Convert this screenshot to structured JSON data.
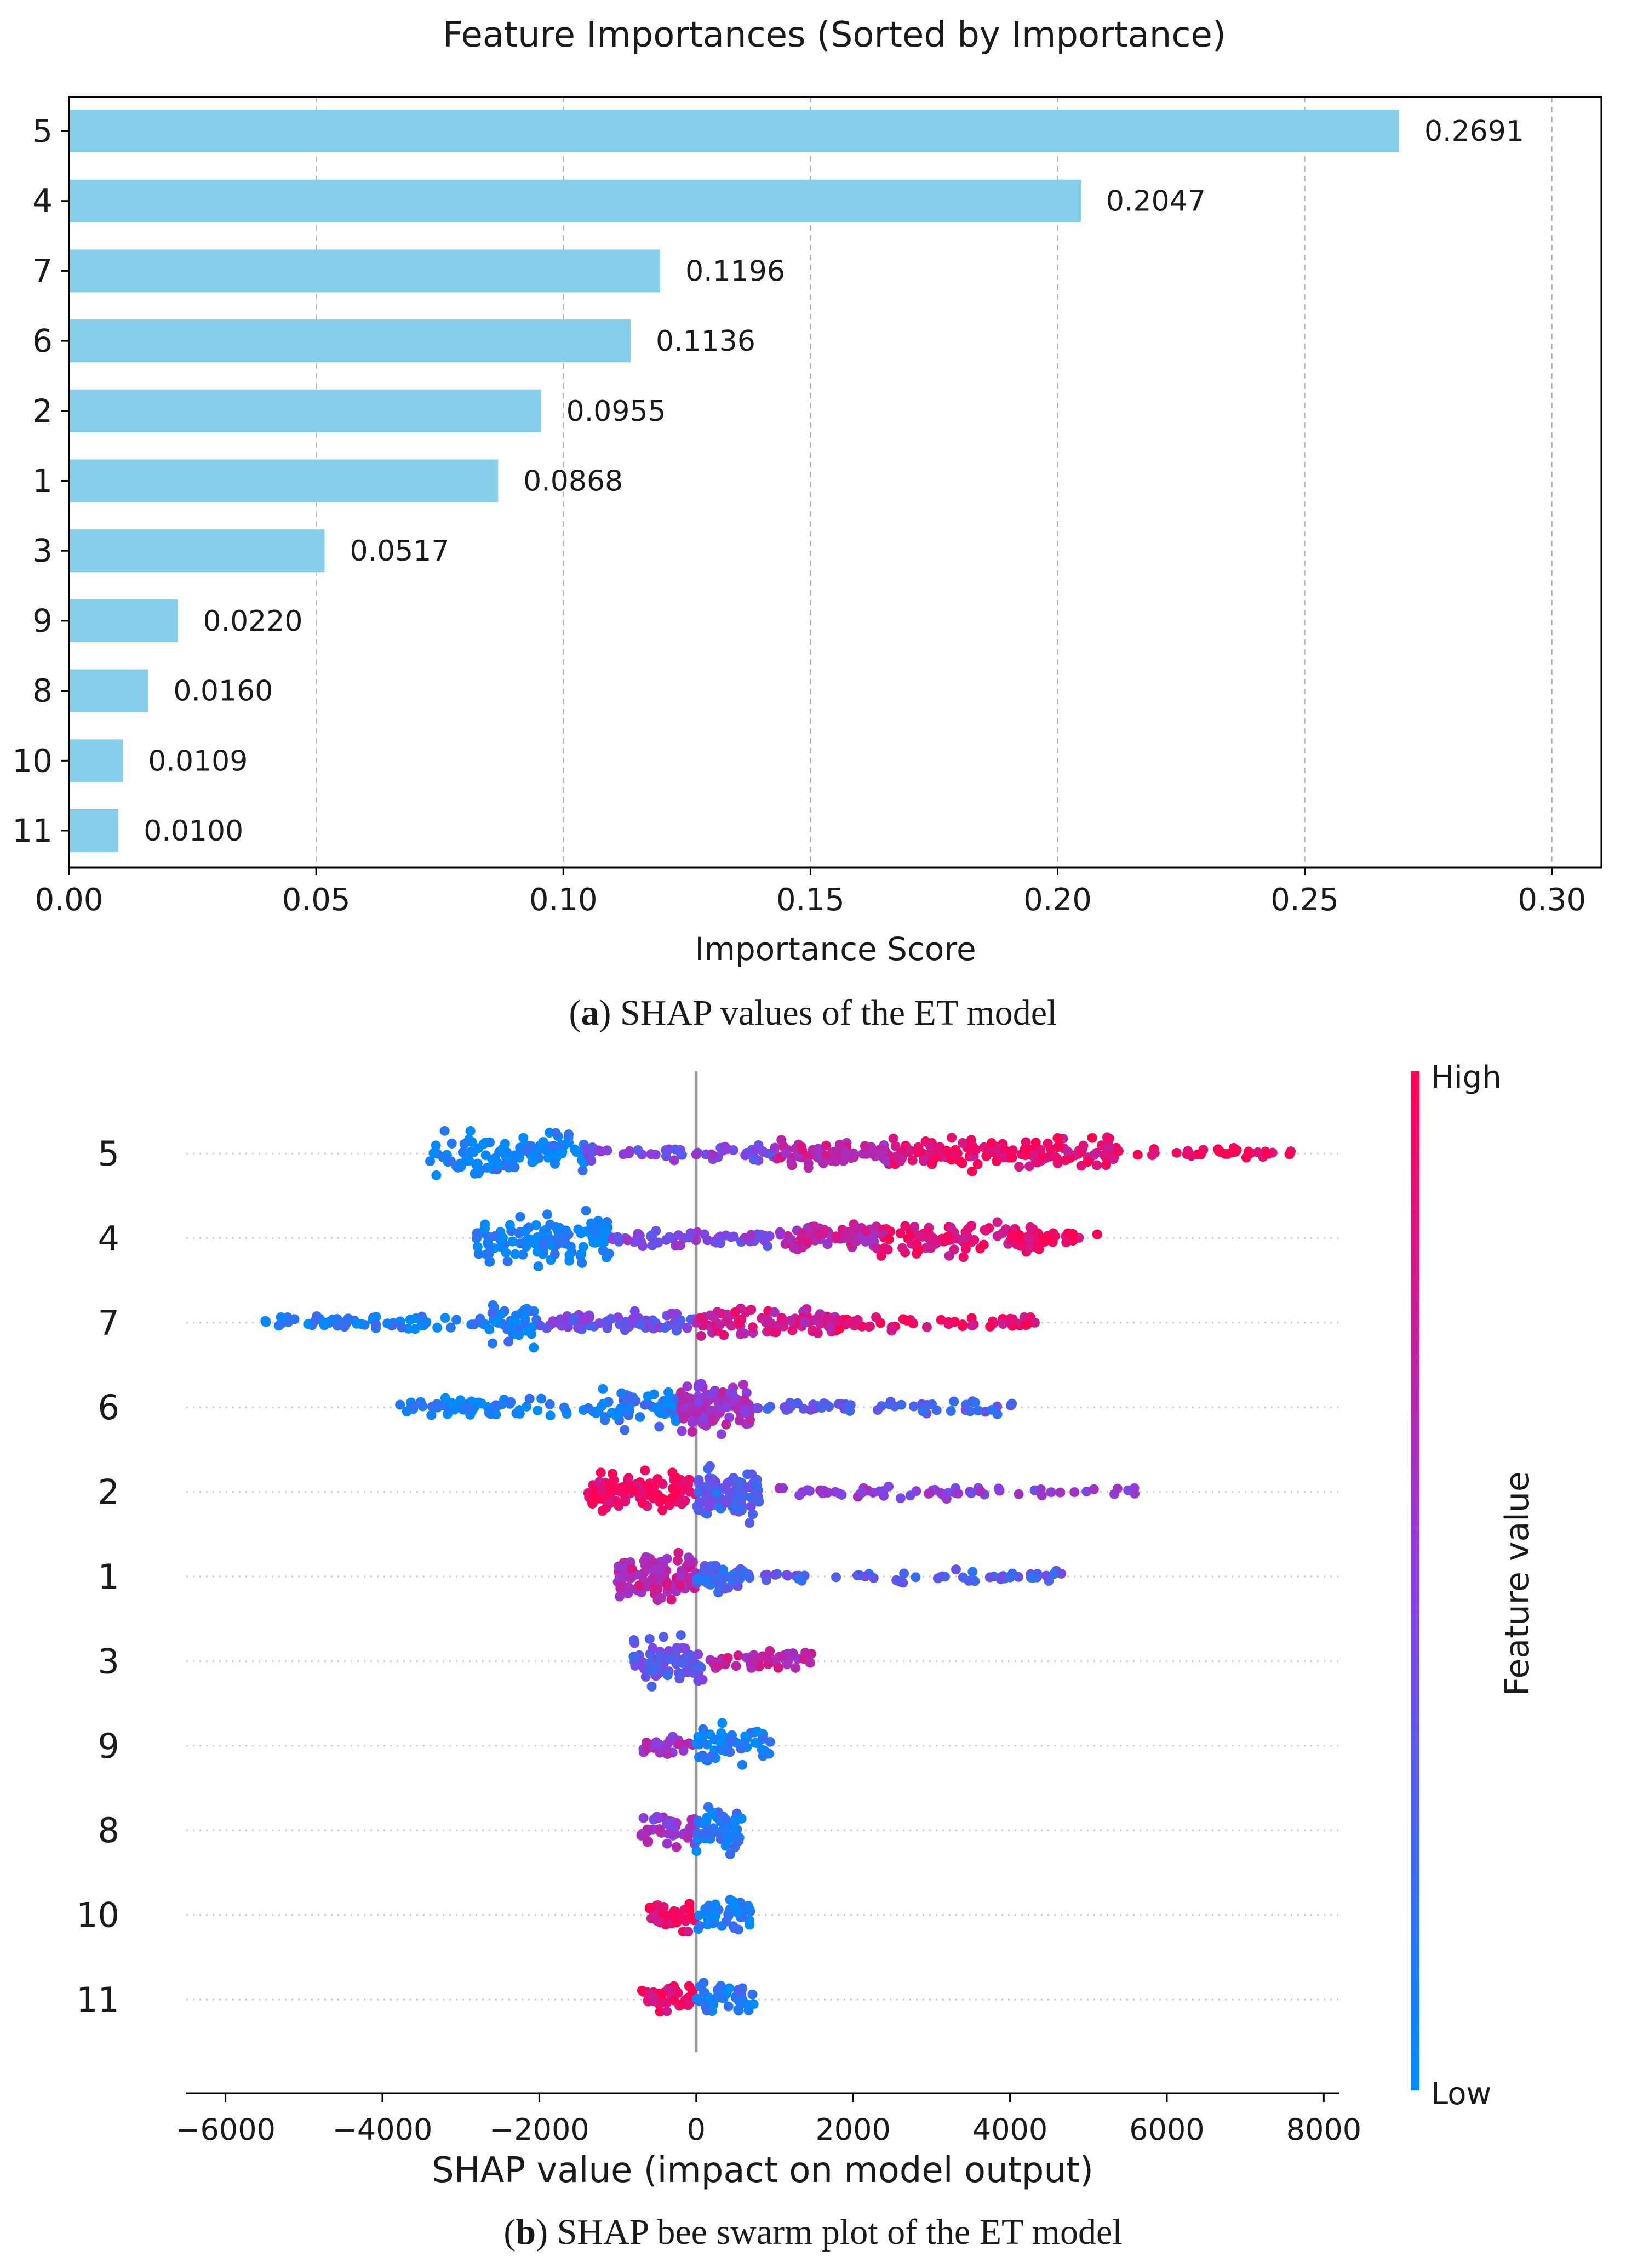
{
  "colors": {
    "bar": "#87ceeb",
    "low": "#008bfb",
    "high": "#ff0052",
    "axis": "#000000",
    "grid": "#b0b0b0",
    "zero_line": "#999999"
  },
  "captions": {
    "a_letter": "a",
    "a_text": ") SHAP values of the ET model",
    "b_letter": "b",
    "b_text": ") SHAP bee swarm plot of the ET model"
  },
  "chart_data": [
    {
      "type": "bar",
      "orientation": "horizontal",
      "title": "Feature Importances (Sorted by Importance)",
      "xlabel": "Importance Score",
      "ylabel": "",
      "categories": [
        "5",
        "4",
        "7",
        "6",
        "2",
        "1",
        "3",
        "9",
        "8",
        "10",
        "11"
      ],
      "values": [
        0.2691,
        0.2047,
        0.1196,
        0.1136,
        0.0955,
        0.0868,
        0.0517,
        0.022,
        0.016,
        0.0109,
        0.01
      ],
      "value_labels": [
        "0.2691",
        "0.2047",
        "0.1196",
        "0.1136",
        "0.0955",
        "0.0868",
        "0.0517",
        "0.0220",
        "0.0160",
        "0.0109",
        "0.0100"
      ],
      "xlim": [
        0,
        0.31
      ],
      "xticks": [
        0.0,
        0.05,
        0.1,
        0.15,
        0.2,
        0.25,
        0.3
      ],
      "xtick_labels": [
        "0.00",
        "0.05",
        "0.10",
        "0.15",
        "0.20",
        "0.25",
        "0.30"
      ],
      "grid": "vertical dashed"
    },
    {
      "type": "scatter",
      "subtype": "beeswarm",
      "title": "",
      "xlabel": "SHAP value (impact on model output)",
      "colorbar_label": "Feature value",
      "colorbar_high": "High",
      "colorbar_low": "Low",
      "xlim": [
        -6500,
        8200
      ],
      "xticks": [
        -6000,
        -4000,
        -2000,
        0,
        2000,
        4000,
        6000,
        8000
      ],
      "xtick_labels": [
        "−6000",
        "−4000",
        "−2000",
        "0",
        "2000",
        "4000",
        "6000",
        "8000"
      ],
      "features": [
        {
          "name": "5",
          "min": -3400,
          "max": 7600,
          "segments": [
            {
              "from": -3400,
              "to": -1400,
              "n": 110,
              "fv": 0.05,
              "dense": 0.9
            },
            {
              "from": -1400,
              "to": 1000,
              "n": 55,
              "fv": 0.45,
              "dense": 0.2
            },
            {
              "from": 1000,
              "to": 2500,
              "n": 70,
              "fv": 0.72,
              "dense": 0.4
            },
            {
              "from": 2500,
              "to": 5400,
              "n": 140,
              "fv": 0.9,
              "dense": 0.6
            },
            {
              "from": 5600,
              "to": 7600,
              "n": 32,
              "fv": 0.97,
              "dense": 0.05
            }
          ]
        },
        {
          "name": "4",
          "min": -2800,
          "max": 5200,
          "segments": [
            {
              "from": -2800,
              "to": -1100,
              "n": 120,
              "fv": 0.05,
              "dense": 1.0
            },
            {
              "from": -1100,
              "to": 1000,
              "n": 55,
              "fv": 0.45,
              "dense": 0.2
            },
            {
              "from": 1000,
              "to": 2300,
              "n": 70,
              "fv": 0.7,
              "dense": 0.5
            },
            {
              "from": 2300,
              "to": 4400,
              "n": 100,
              "fv": 0.88,
              "dense": 0.6
            },
            {
              "from": 4400,
              "to": 5200,
              "n": 18,
              "fv": 0.95,
              "dense": 0.1
            }
          ]
        },
        {
          "name": "7",
          "min": -5500,
          "max": 4400,
          "segments": [
            {
              "from": -5500,
              "to": -2600,
              "n": 60,
              "fv": 0.1,
              "dense": 0.1
            },
            {
              "from": -2600,
              "to": -2000,
              "n": 40,
              "fv": 0.12,
              "dense": 0.9
            },
            {
              "from": -2000,
              "to": 0,
              "n": 70,
              "fv": 0.4,
              "dense": 0.3
            },
            {
              "from": 0,
              "to": 1800,
              "n": 95,
              "fv": 0.78,
              "dense": 0.6
            },
            {
              "from": 1800,
              "to": 4400,
              "n": 50,
              "fv": 0.92,
              "dense": 0.2
            }
          ]
        },
        {
          "name": "6",
          "min": -3800,
          "max": 4100,
          "segments": [
            {
              "from": -3800,
              "to": -1200,
              "n": 70,
              "fv": 0.05,
              "dense": 0.25
            },
            {
              "from": -1200,
              "to": -200,
              "n": 55,
              "fv": 0.12,
              "dense": 0.7
            },
            {
              "from": -200,
              "to": 700,
              "n": 110,
              "fv": 0.6,
              "dense": 1.0
            },
            {
              "from": 700,
              "to": 4100,
              "n": 55,
              "fv": 0.3,
              "dense": 0.1
            }
          ]
        },
        {
          "name": "2",
          "min": -1400,
          "max": 5600,
          "segments": [
            {
              "from": -1400,
              "to": 0,
              "n": 100,
              "fv": 0.92,
              "dense": 0.8
            },
            {
              "from": 0,
              "to": 800,
              "n": 95,
              "fv": 0.3,
              "dense": 1.0
            },
            {
              "from": 800,
              "to": 5600,
              "n": 60,
              "fv": 0.5,
              "dense": 0.1
            }
          ]
        },
        {
          "name": "1",
          "min": -1000,
          "max": 4700,
          "segments": [
            {
              "from": -1000,
              "to": 0,
              "n": 95,
              "fv": 0.7,
              "dense": 0.9
            },
            {
              "from": 0,
              "to": 600,
              "n": 55,
              "fv": 0.25,
              "dense": 0.7
            },
            {
              "from": 600,
              "to": 4700,
              "n": 55,
              "fv": 0.3,
              "dense": 0.1
            }
          ]
        },
        {
          "name": "3",
          "min": -800,
          "max": 1500,
          "segments": [
            {
              "from": -800,
              "to": 100,
              "n": 75,
              "fv": 0.35,
              "dense": 1.0
            },
            {
              "from": 100,
              "to": 1500,
              "n": 50,
              "fv": 0.7,
              "dense": 0.3
            }
          ]
        },
        {
          "name": "9",
          "min": -700,
          "max": 950,
          "segments": [
            {
              "from": -700,
              "to": 0,
              "n": 30,
              "fv": 0.6,
              "dense": 0.4
            },
            {
              "from": 0,
              "to": 950,
              "n": 55,
              "fv": 0.08,
              "dense": 0.8
            }
          ]
        },
        {
          "name": "8",
          "min": -700,
          "max": 600,
          "segments": [
            {
              "from": -700,
              "to": 0,
              "n": 40,
              "fv": 0.55,
              "dense": 0.6
            },
            {
              "from": 0,
              "to": 600,
              "n": 55,
              "fv": 0.12,
              "dense": 0.9
            }
          ]
        },
        {
          "name": "10",
          "min": -600,
          "max": 700,
          "segments": [
            {
              "from": -600,
              "to": 0,
              "n": 40,
              "fv": 0.93,
              "dense": 0.5
            },
            {
              "from": 0,
              "to": 700,
              "n": 45,
              "fv": 0.1,
              "dense": 0.7
            }
          ]
        },
        {
          "name": "11",
          "min": -700,
          "max": 800,
          "segments": [
            {
              "from": -700,
              "to": 0,
              "n": 40,
              "fv": 0.9,
              "dense": 0.5
            },
            {
              "from": 0,
              "to": 800,
              "n": 45,
              "fv": 0.12,
              "dense": 0.7
            }
          ]
        }
      ]
    }
  ]
}
